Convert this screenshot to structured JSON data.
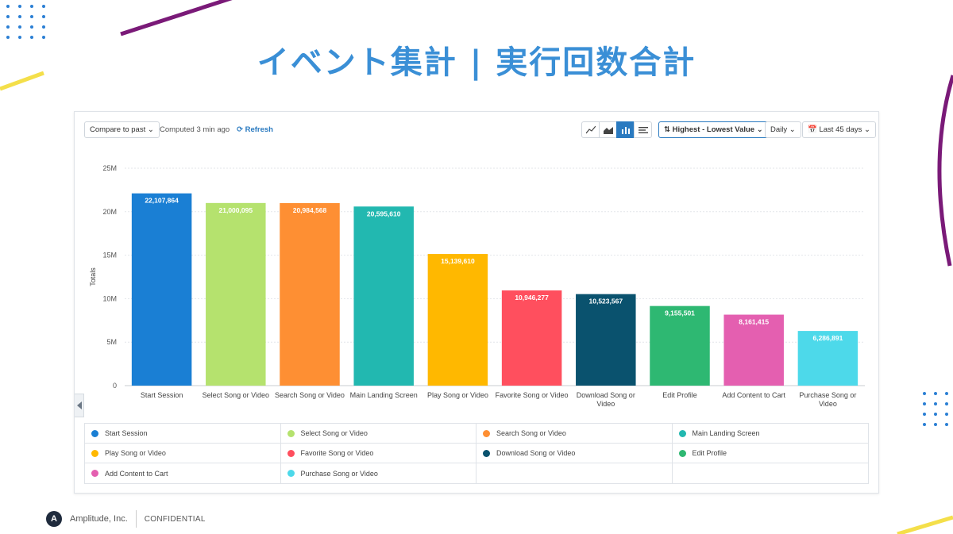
{
  "slide": {
    "title": "イベント集計 | 実行回数合計"
  },
  "toolbar": {
    "compare_label": "Compare to past",
    "computed_text": "Computed 3 min ago",
    "refresh_label": "Refresh",
    "sort_label": "Highest - Lowest Value",
    "interval_label": "Daily",
    "range_label": "Last 45 days",
    "chart_type_icons": [
      "line-chart-icon",
      "area-chart-icon",
      "bar-chart-icon",
      "table-icon"
    ],
    "active_chart_type": "bar"
  },
  "chart_data": {
    "type": "bar",
    "ylabel": "Totals",
    "ylim": [
      0,
      25000000
    ],
    "yticks": [
      {
        "value": 0,
        "label": "0"
      },
      {
        "value": 5000000,
        "label": "5M"
      },
      {
        "value": 10000000,
        "label": "10M"
      },
      {
        "value": 15000000,
        "label": "15M"
      },
      {
        "value": 20000000,
        "label": "20M"
      },
      {
        "value": 25000000,
        "label": "25M"
      }
    ],
    "grid": true,
    "categories": [
      "Start Session",
      "Select Song or Video",
      "Search Song or Video",
      "Main Landing Screen",
      "Play Song or Video",
      "Favorite Song or Video",
      "Download Song or Video",
      "Edit Profile",
      "Add Content to Cart",
      "Purchase Song or Video"
    ],
    "category_lines": [
      [
        "Start Session"
      ],
      [
        "Select Song or Video"
      ],
      [
        "Search Song or Video"
      ],
      [
        "Main Landing Screen"
      ],
      [
        "Play Song or Video"
      ],
      [
        "Favorite Song or Video"
      ],
      [
        "Download Song or",
        "Video"
      ],
      [
        "Edit Profile"
      ],
      [
        "Add Content to Cart"
      ],
      [
        "Purchase Song or",
        "Video"
      ]
    ],
    "values": [
      22107864,
      21000095,
      20984568,
      20595610,
      15139610,
      10946277,
      10523567,
      9155501,
      8161415,
      6286891
    ],
    "value_labels": [
      "22,107,864",
      "21,000,095",
      "20,984,568",
      "20,595,610",
      "15,139,610",
      "10,946,277",
      "10,523,567",
      "9,155,501",
      "8,161,415",
      "6,286,891"
    ],
    "colors": [
      "#1a7fd4",
      "#b5e26e",
      "#fe8f33",
      "#22b8b0",
      "#ffb800",
      "#ff4f5e",
      "#0a526e",
      "#2eb872",
      "#e45fb0",
      "#4dd9ea"
    ]
  },
  "legend": {
    "items": [
      {
        "label": "Start Session",
        "color": "#1a7fd4"
      },
      {
        "label": "Select Song or Video",
        "color": "#b5e26e"
      },
      {
        "label": "Search Song or Video",
        "color": "#fe8f33"
      },
      {
        "label": "Main Landing Screen",
        "color": "#22b8b0"
      },
      {
        "label": "Play Song or Video",
        "color": "#ffb800"
      },
      {
        "label": "Favorite Song or Video",
        "color": "#ff4f5e"
      },
      {
        "label": "Download Song or Video",
        "color": "#0a526e"
      },
      {
        "label": "Edit Profile",
        "color": "#2eb872"
      },
      {
        "label": "Add Content to Cart",
        "color": "#e45fb0"
      },
      {
        "label": "Purchase Song or Video",
        "color": "#4dd9ea"
      }
    ]
  },
  "footer": {
    "logo_letter": "A",
    "company": "Amplitude, Inc.",
    "confidential": "CONFIDENTIAL"
  }
}
